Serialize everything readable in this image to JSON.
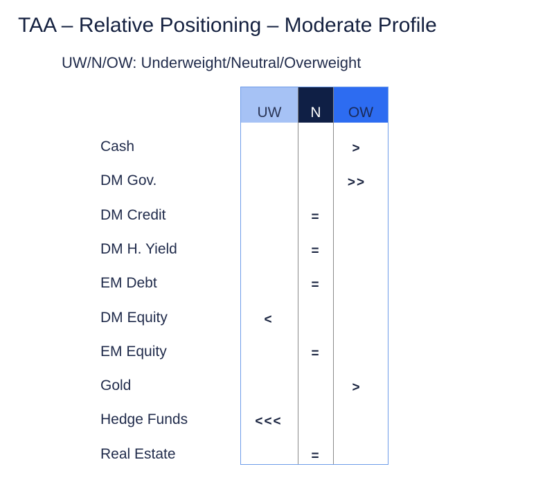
{
  "title": "TAA – Relative Positioning – Moderate Profile",
  "subtitle": "UW/N/OW: Underweight/Neutral/Overweight",
  "columns": {
    "uw": "UW",
    "n": "N",
    "ow": "OW"
  },
  "colors": {
    "uw_header": "#a6c2f5",
    "n_header": "#0f1f45",
    "ow_header": "#2d6cf1",
    "border": "#6d9be9"
  },
  "rows": [
    {
      "label": "Cash",
      "column": "OW",
      "mark": ">"
    },
    {
      "label": "DM Gov.",
      "column": "OW",
      "mark": ">>"
    },
    {
      "label": "DM Credit",
      "column": "N",
      "mark": "="
    },
    {
      "label": "DM H. Yield",
      "column": "N",
      "mark": "="
    },
    {
      "label": "EM Debt",
      "column": "N",
      "mark": "="
    },
    {
      "label": "DM Equity",
      "column": "UW",
      "mark": "<"
    },
    {
      "label": "EM Equity",
      "column": "N",
      "mark": "="
    },
    {
      "label": "Gold",
      "column": "OW",
      "mark": ">"
    },
    {
      "label": "Hedge Funds",
      "column": "UW",
      "mark": "<<<"
    },
    {
      "label": "Real Estate",
      "column": "N",
      "mark": "="
    }
  ]
}
